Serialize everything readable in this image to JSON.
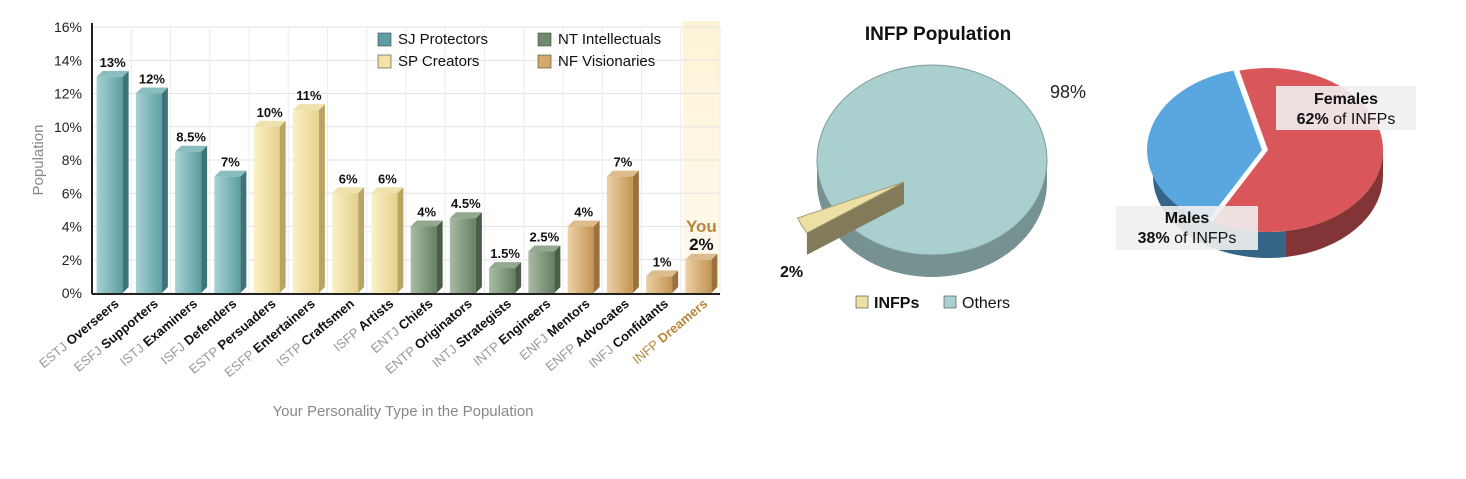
{
  "chart_data": [
    {
      "type": "bar",
      "title": "",
      "xlabel": "Your Personality Type in the Population",
      "ylabel": "Population",
      "ylim": [
        0,
        16
      ],
      "yticks": [
        "0%",
        "2%",
        "4%",
        "6%",
        "8%",
        "10%",
        "12%",
        "14%",
        "16%"
      ],
      "ytick_values": [
        0,
        2,
        4,
        6,
        8,
        10,
        12,
        14,
        16
      ],
      "grid": true,
      "legend_position": "top-right",
      "legend": [
        {
          "name": "SJ Protectors",
          "color": "#5b9ea3"
        },
        {
          "name": "NT Intellectuals",
          "color": "#6e8a6c"
        },
        {
          "name": "SP Creators",
          "color": "#f2e2a6"
        },
        {
          "name": "NF Visionaries",
          "color": "#d4a96b"
        }
      ],
      "highlight": {
        "category_index": 15,
        "label": "You",
        "color": "#b8863a"
      },
      "categories": [
        {
          "code": "ESTJ",
          "name": "Overseers",
          "value": 13,
          "label": "13%",
          "group": "SJ Protectors"
        },
        {
          "code": "ESFJ",
          "name": "Supporters",
          "value": 12,
          "label": "12%",
          "group": "SJ Protectors"
        },
        {
          "code": "ISTJ",
          "name": "Examiners",
          "value": 8.5,
          "label": "8.5%",
          "group": "SJ Protectors"
        },
        {
          "code": "ISFJ",
          "name": "Defenders",
          "value": 7,
          "label": "7%",
          "group": "SJ Protectors"
        },
        {
          "code": "ESTP",
          "name": "Persuaders",
          "value": 10,
          "label": "10%",
          "group": "SP Creators"
        },
        {
          "code": "ESFP",
          "name": "Entertainers",
          "value": 11,
          "label": "11%",
          "group": "SP Creators"
        },
        {
          "code": "ISTP",
          "name": "Craftsmen",
          "value": 6,
          "label": "6%",
          "group": "SP Creators"
        },
        {
          "code": "ISFP",
          "name": "Artists",
          "value": 6,
          "label": "6%",
          "group": "SP Creators"
        },
        {
          "code": "ENTJ",
          "name": "Chiefs",
          "value": 4,
          "label": "4%",
          "group": "NT Intellectuals"
        },
        {
          "code": "ENTP",
          "name": "Originators",
          "value": 4.5,
          "label": "4.5%",
          "group": "NT Intellectuals"
        },
        {
          "code": "INTJ",
          "name": "Strategists",
          "value": 1.5,
          "label": "1.5%",
          "group": "NT Intellectuals"
        },
        {
          "code": "INTP",
          "name": "Engineers",
          "value": 2.5,
          "label": "2.5%",
          "group": "NT Intellectuals"
        },
        {
          "code": "ENFJ",
          "name": "Mentors",
          "value": 4,
          "label": "4%",
          "group": "NF Visionaries"
        },
        {
          "code": "ENFP",
          "name": "Advocates",
          "value": 7,
          "label": "7%",
          "group": "NF Visionaries"
        },
        {
          "code": "INFJ",
          "name": "Confidants",
          "value": 1,
          "label": "1%",
          "group": "NF Visionaries"
        },
        {
          "code": "INFP",
          "name": "Dreamers",
          "value": 2,
          "label": "2%",
          "group": "NF Visionaries"
        }
      ]
    },
    {
      "type": "pie",
      "title": "INFP Population",
      "slices": [
        {
          "name": "INFPs",
          "value": 2,
          "label": "2%",
          "color": "#ede0a4"
        },
        {
          "name": "Others",
          "value": 98,
          "label": "98%",
          "color": "#a9cfcf"
        }
      ],
      "legend_position": "bottom"
    },
    {
      "type": "pie",
      "title": "",
      "slices": [
        {
          "name": "Females",
          "value": 62,
          "percent": "62%",
          "suffix": "of INFPs",
          "color": "#d9575a"
        },
        {
          "name": "Males",
          "value": 38,
          "percent": "38%",
          "suffix": "of INFPs",
          "color": "#5aa7e0"
        }
      ]
    }
  ]
}
